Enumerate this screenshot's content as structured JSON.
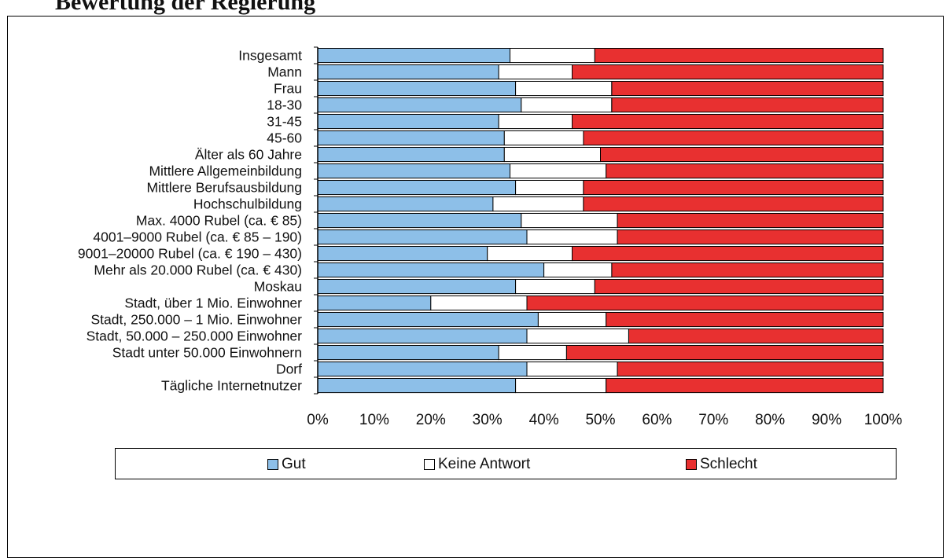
{
  "page": {
    "title": "Bewertung der Regierung"
  },
  "colors": {
    "gut": "#8dbfe8",
    "keine_antwort": "#ffffff",
    "schlecht": "#e83030",
    "axis": "#000000"
  },
  "chart_data": {
    "type": "bar",
    "orientation": "horizontal",
    "stacked": "percent",
    "categories": [
      "Insgesamt",
      "Mann",
      "Frau",
      "18-30",
      "31-45",
      "45-60",
      "Älter als 60 Jahre",
      "Mittlere Allgemeinbildung",
      "Mittlere Berufsausbildung",
      "Hochschulbildung",
      "Max. 4000 Rubel (ca. € 85)",
      "4001–9000 Rubel (ca. € 85 – 190)",
      "9001–20000 Rubel (ca. € 190 – 430)",
      "Mehr als 20.000 Rubel (ca. € 430)",
      "Moskau",
      "Stadt, über 1 Mio. Einwohner",
      "Stadt, 250.000 – 1 Mio. Einwohner",
      "Stadt, 50.000 – 250.000 Einwohner",
      "Stadt unter 50.000 Einwohnern",
      "Dorf",
      "Tägliche Internetnutzer"
    ],
    "series": [
      {
        "name": "Gut",
        "values": [
          34,
          32,
          35,
          36,
          32,
          33,
          33,
          34,
          35,
          31,
          36,
          37,
          30,
          40,
          35,
          20,
          39,
          37,
          32,
          37,
          35
        ]
      },
      {
        "name": "Keine Antwort",
        "values": [
          15,
          13,
          17,
          16,
          13,
          14,
          17,
          17,
          12,
          16,
          17,
          16,
          15,
          12,
          14,
          17,
          12,
          18,
          12,
          16,
          16
        ]
      },
      {
        "name": "Schlecht",
        "values": [
          51,
          55,
          48,
          48,
          55,
          53,
          50,
          49,
          53,
          53,
          47,
          47,
          55,
          48,
          51,
          63,
          49,
          45,
          56,
          47,
          49
        ]
      }
    ],
    "xlim": [
      0,
      100
    ],
    "xticks": [
      "0%",
      "10%",
      "20%",
      "30%",
      "40%",
      "50%",
      "60%",
      "70%",
      "80%",
      "90%",
      "100%"
    ],
    "legend": "bottom",
    "grid": false
  }
}
